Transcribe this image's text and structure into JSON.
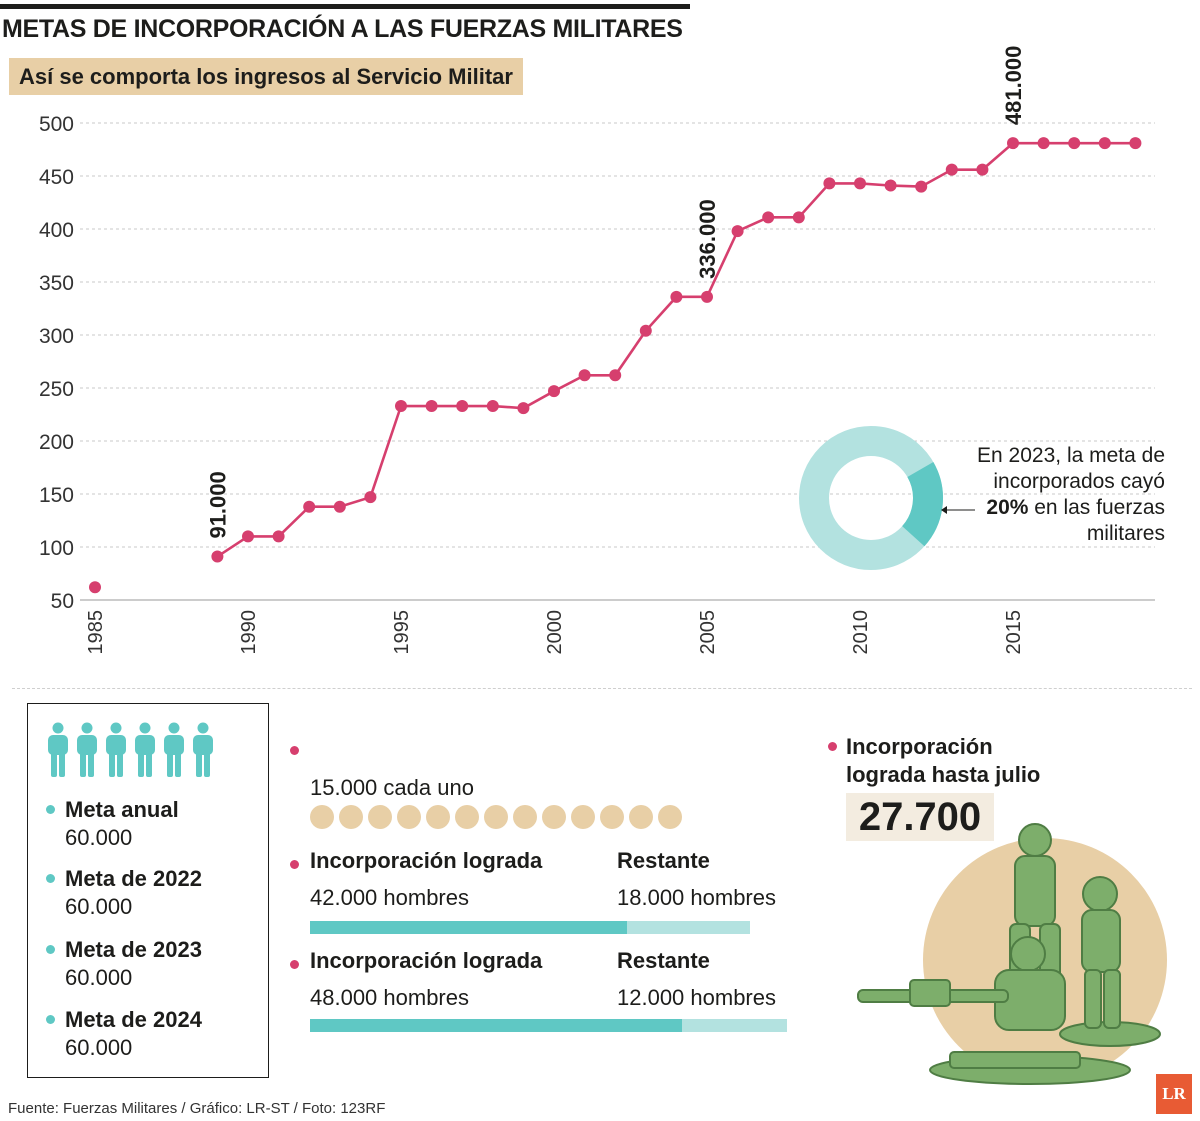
{
  "header": {
    "title": "METAS DE INCORPORACIÓN A LAS FUERZAS MILITARES",
    "subtitle": "Así se comporta los ingresos al Servicio Militar"
  },
  "chart_data": {
    "type": "line",
    "title": "",
    "xlabel": "",
    "ylabel": "",
    "ylim": [
      50,
      500
    ],
    "yticks": [
      50,
      100,
      150,
      200,
      250,
      300,
      350,
      400,
      450,
      500
    ],
    "xticks": [
      1985,
      1990,
      1995,
      2000,
      2005,
      2010,
      2015
    ],
    "grid": "horizontal-dashed",
    "isolated_point": {
      "x": 1985,
      "y": 62
    },
    "x": [
      1989,
      1990,
      1991,
      1992,
      1993,
      1994,
      1995,
      1996,
      1997,
      1998,
      1999,
      2000,
      2001,
      2002,
      2003,
      2004,
      2005,
      2006,
      2007,
      2008,
      2009,
      2010,
      2011,
      2012,
      2013,
      2014,
      2015,
      2016,
      2017,
      2018,
      2019
    ],
    "y": [
      91,
      110,
      110,
      138,
      138,
      147,
      233,
      233,
      233,
      233,
      231,
      247,
      262,
      262,
      304,
      336,
      336,
      398,
      411,
      411,
      443,
      443,
      441,
      440,
      456,
      456,
      481,
      481,
      481,
      481,
      481
    ],
    "annotations": [
      {
        "x": 1989,
        "y": 91,
        "text": "91.000"
      },
      {
        "x": 2005,
        "y": 336,
        "text": "336.000"
      },
      {
        "x": 2015,
        "y": 481,
        "text": "481.000"
      }
    ],
    "series_color": "#d63f6e"
  },
  "donut": {
    "percent": 20,
    "text_before": "En 2023, la meta de incorporados cayó ",
    "highlight": "20%",
    "text_after": " en las fuerzas militares",
    "color_main": "#b3e2e0",
    "color_highlight": "#5fc8c4"
  },
  "goals": [
    {
      "label": "Meta anual",
      "value": "60.000"
    },
    {
      "label": "Meta de 2022",
      "value": "60.000"
    },
    {
      "label": "Meta de 2023",
      "value": "60.000"
    },
    {
      "label": "Meta de 2024",
      "value": "60.000"
    }
  ],
  "coins": {
    "caption": "15.000 cada uno",
    "count": 13
  },
  "progress": [
    {
      "achieved_label": "Incorporación lograda",
      "achieved_value": "42.000 hombres",
      "remaining_label": "Restante",
      "remaining_value": "18.000 hombres",
      "achieved_fraction": 0.7
    },
    {
      "achieved_label": "Incorporación lograda",
      "achieved_value": "48.000 hombres",
      "remaining_label": "Restante",
      "remaining_value": "12.000 hombres",
      "achieved_fraction": 0.8
    }
  ],
  "achieved": {
    "label_line1": "Incorporación",
    "label_line2": "lograda hasta julio",
    "value": "27.700"
  },
  "source": "Fuente: Fuerzas Militares / Gráfico: LR-ST / Foto: 123RF",
  "logo": "LR",
  "colors": {
    "accent": "#d63f6e",
    "teal": "#5fc8c4",
    "teal_light": "#b3e2e0",
    "sand": "#e8cfa6"
  }
}
